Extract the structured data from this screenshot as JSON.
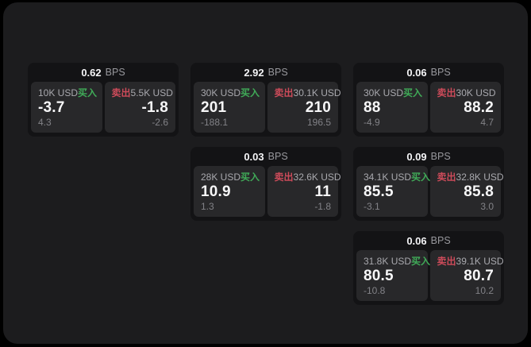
{
  "labels": {
    "buy": "买入",
    "sell": "卖出",
    "bps_suffix": "BPS"
  },
  "colors": {
    "background": "#000000",
    "panel": "#1c1c1e",
    "card": "#131315",
    "tile": "#28282a",
    "buy_green": "#40ab58",
    "sell_red": "#cd4b5a",
    "text_primary": "#f5f5f7",
    "text_secondary": "#a9a9ae",
    "text_muted": "#828287"
  },
  "cards": [
    {
      "bps": "0.62",
      "buy": {
        "amount": "10K USD",
        "value": "-3.7",
        "change": "4.3"
      },
      "sell": {
        "amount": "5.5K USD",
        "value": "-1.8",
        "change": "-2.6"
      }
    },
    {
      "bps": "2.92",
      "buy": {
        "amount": "30K USD",
        "value": "201",
        "change": "-188.1"
      },
      "sell": {
        "amount": "30.1K USD",
        "value": "210",
        "change": "196.5"
      }
    },
    {
      "bps": "0.06",
      "buy": {
        "amount": "30K USD",
        "value": "88",
        "change": "-4.9"
      },
      "sell": {
        "amount": "30K USD",
        "value": "88.2",
        "change": "4.7"
      }
    },
    {
      "bps": "0.03",
      "buy": {
        "amount": "28K USD",
        "value": "10.9",
        "change": "1.3"
      },
      "sell": {
        "amount": "32.6K USD",
        "value": "11",
        "change": "-1.8"
      }
    },
    {
      "bps": "0.09",
      "buy": {
        "amount": "34.1K USD",
        "value": "85.5",
        "change": "-3.1"
      },
      "sell": {
        "amount": "32.8K USD",
        "value": "85.8",
        "change": "3.0"
      }
    },
    {
      "bps": "0.06",
      "buy": {
        "amount": "31.8K USD",
        "value": "80.5",
        "change": "-10.8"
      },
      "sell": {
        "amount": "39.1K USD",
        "value": "80.7",
        "change": "10.2"
      }
    }
  ]
}
